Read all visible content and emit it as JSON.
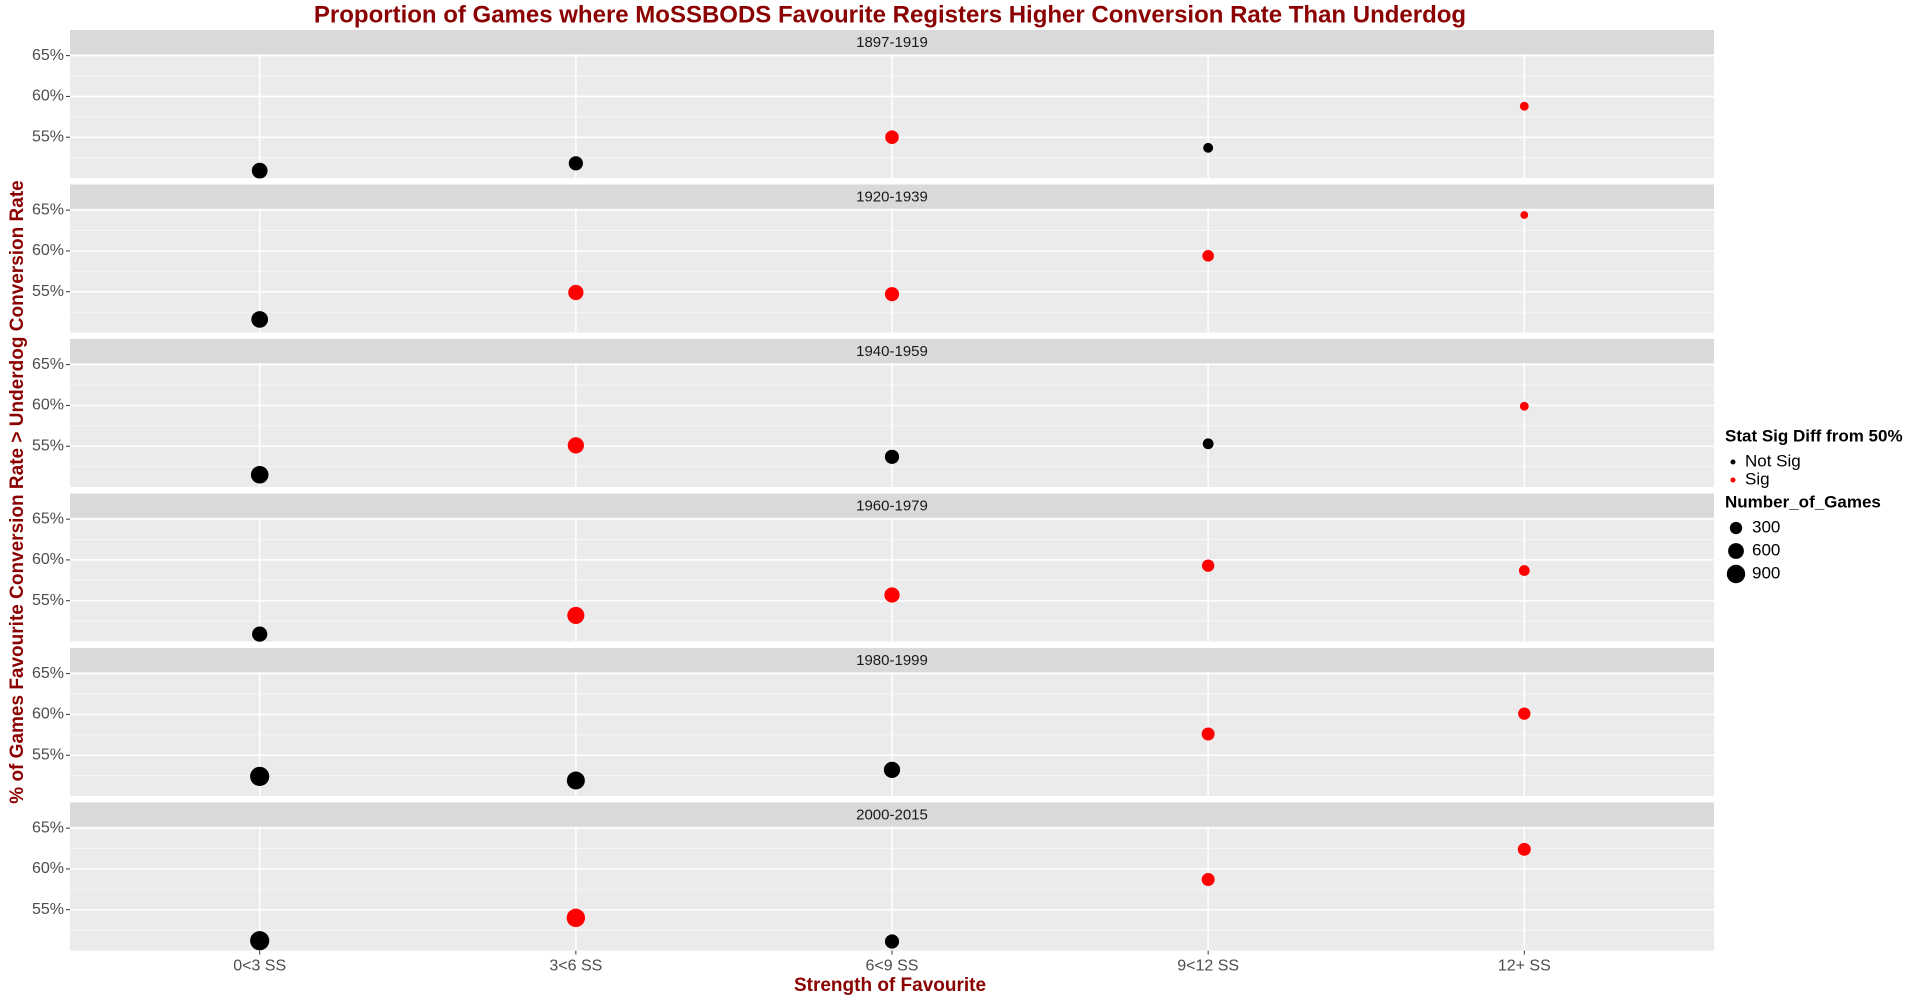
{
  "chart_data": {
    "type": "scatter",
    "title": "Proportion of Games where MoSSBODS Favourite Registers Higher Conversion Rate Than Underdog",
    "x_label": "Strength of Favourite",
    "y_label": "% of Games Favourite Conversion Rate > Underdog Conversion Rate",
    "categories": [
      "0<3 SS",
      "3<6 SS",
      "6<9 SS",
      "9<12 SS",
      "12+ SS"
    ],
    "ylim": [
      50,
      65.2
    ],
    "yticks": [
      {
        "value": 55,
        "label": "55%"
      },
      {
        "value": 60,
        "label": "60%"
      },
      {
        "value": 65,
        "label": "65%"
      }
    ],
    "grid": true,
    "color_legend_title": "Stat Sig Diff from 50%",
    "color_levels": [
      {
        "name": "Not Sig",
        "color": "#000000"
      },
      {
        "name": "Sig",
        "color": "#ff0000"
      }
    ],
    "size_legend_title": "Number_of_Games",
    "size_legend": [
      300,
      600,
      900
    ],
    "panels": [
      {
        "name": "1897-1919",
        "values": [
          50.9,
          51.8,
          55.0,
          53.7,
          58.8
        ],
        "sizes": [
          600,
          450,
          400,
          150,
          100
        ],
        "sig": [
          "Not Sig",
          "Not Sig",
          "Sig",
          "Not Sig",
          "Sig"
        ]
      },
      {
        "name": "1920-1939",
        "values": [
          51.6,
          54.9,
          54.7,
          59.4,
          64.4
        ],
        "sizes": [
          700,
          550,
          450,
          250,
          60
        ],
        "sig": [
          "Not Sig",
          "Sig",
          "Sig",
          "Sig",
          "Sig"
        ]
      },
      {
        "name": "1940-1959",
        "values": [
          51.5,
          55.1,
          53.7,
          55.3,
          59.9
        ],
        "sizes": [
          800,
          650,
          450,
          200,
          100
        ],
        "sig": [
          "Not Sig",
          "Sig",
          "Not Sig",
          "Not Sig",
          "Sig"
        ]
      },
      {
        "name": "1960-1979",
        "values": [
          50.9,
          53.2,
          55.7,
          59.3,
          58.7
        ],
        "sizes": [
          550,
          750,
          550,
          300,
          200
        ],
        "sig": [
          "Not Sig",
          "Sig",
          "Sig",
          "Sig",
          "Sig"
        ]
      },
      {
        "name": "1980-1999",
        "values": [
          52.4,
          51.9,
          53.2,
          57.6,
          60.1
        ],
        "sizes": [
          1000,
          850,
          650,
          350,
          300
        ],
        "sig": [
          "Not Sig",
          "Not Sig",
          "Not Sig",
          "Sig",
          "Sig"
        ]
      },
      {
        "name": "2000-2015",
        "values": [
          51.2,
          54.0,
          51.1,
          58.7,
          62.4
        ],
        "sizes": [
          1000,
          900,
          450,
          350,
          350
        ],
        "sig": [
          "Not Sig",
          "Sig",
          "Not Sig",
          "Sig",
          "Sig"
        ]
      }
    ]
  }
}
